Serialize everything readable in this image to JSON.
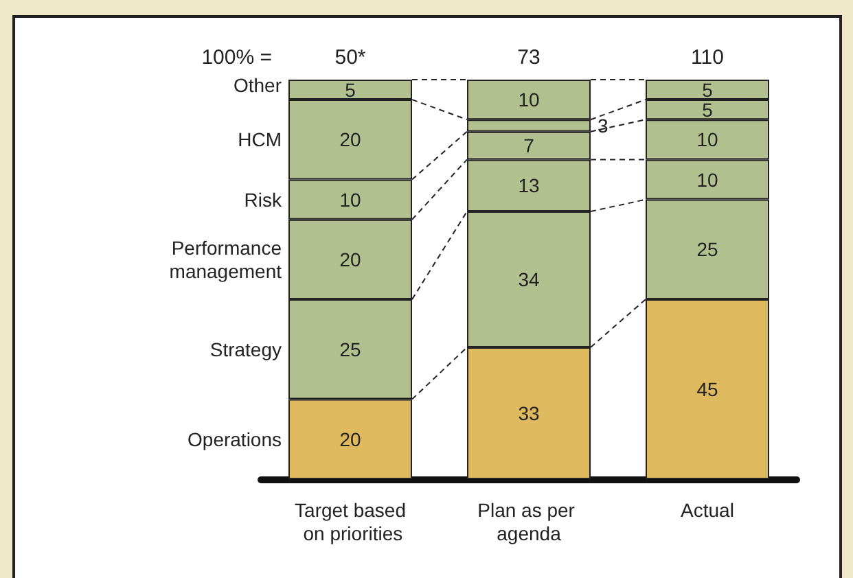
{
  "chart_data": {
    "type": "bar",
    "stacked": true,
    "data_labels": true,
    "legend": false,
    "categories": [
      "Target based on priorities",
      "Plan as per agenda",
      "Actual"
    ],
    "series": [
      {
        "name": "Operations",
        "color": "#dfb95e",
        "values": [
          20,
          33,
          45
        ]
      },
      {
        "name": "Strategy",
        "color": "#b2c08f",
        "values": [
          25,
          34,
          25
        ]
      },
      {
        "name": "Performance management",
        "color": "#b2c08f",
        "values": [
          20,
          13,
          10
        ]
      },
      {
        "name": "Risk",
        "color": "#b2c08f",
        "values": [
          10,
          7,
          10
        ]
      },
      {
        "name": "HCM",
        "color": "#b2c08f",
        "values": [
          20,
          3,
          5
        ]
      },
      {
        "name": "Other",
        "color": "#b2c08f",
        "values": [
          5,
          10,
          5
        ]
      }
    ],
    "annotations": [
      "100% =",
      {
        "text": "50*",
        "x": "Target based on priorities",
        "y": 100
      },
      {
        "text": "73",
        "x": "Plan as per agenda",
        "y": 100
      },
      {
        "text": "110",
        "x": "Actual",
        "y": 100
      }
    ]
  }
}
